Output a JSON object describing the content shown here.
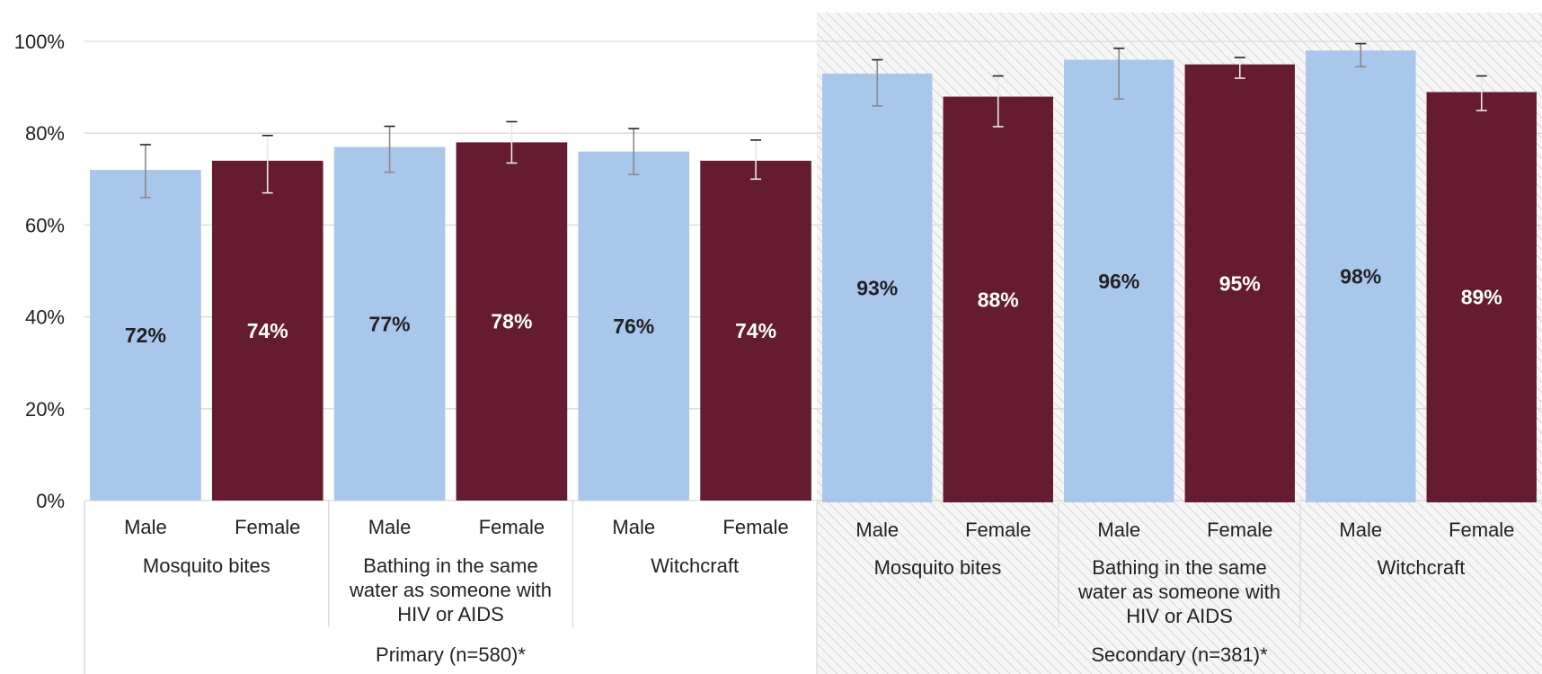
{
  "chart_data": {
    "type": "bar",
    "title": "",
    "xlabel": "",
    "ylabel": "",
    "ylim": [
      0,
      100
    ],
    "y_ticks": [
      "0%",
      "20%",
      "40%",
      "60%",
      "80%",
      "100%"
    ],
    "grid": "horizontal",
    "legend": "none",
    "colors": {
      "Male": "#a9c6eb",
      "Female": "#651c31"
    },
    "groups": [
      {
        "label": "Primary (n=580)*",
        "hatched": false,
        "topics": [
          {
            "label": "Mosquito bites",
            "bars": [
              {
                "category": "Male",
                "value": 72,
                "label": "72%",
                "err_low": 66,
                "err_high": 77.5
              },
              {
                "category": "Female",
                "value": 74,
                "label": "74%",
                "err_low": 67,
                "err_high": 79.5
              }
            ]
          },
          {
            "label": "Bathing in the same water as someone with HIV or AIDS",
            "bars": [
              {
                "category": "Male",
                "value": 77,
                "label": "77%",
                "err_low": 71.5,
                "err_high": 81.5
              },
              {
                "category": "Female",
                "value": 78,
                "label": "78%",
                "err_low": 73.5,
                "err_high": 82.5
              }
            ]
          },
          {
            "label": "Witchcraft",
            "bars": [
              {
                "category": "Male",
                "value": 76,
                "label": "76%",
                "err_low": 71,
                "err_high": 81
              },
              {
                "category": "Female",
                "value": 74,
                "label": "74%",
                "err_low": 70,
                "err_high": 78.5
              }
            ]
          }
        ]
      },
      {
        "label": "Secondary (n=381)*",
        "hatched": true,
        "topics": [
          {
            "label": "Mosquito bites",
            "bars": [
              {
                "category": "Male",
                "value": 93,
                "label": "93%",
                "err_low": 86,
                "err_high": 96
              },
              {
                "category": "Female",
                "value": 88,
                "label": "88%",
                "err_low": 81.5,
                "err_high": 92.5
              }
            ]
          },
          {
            "label": "Bathing in the same water as someone with HIV or AIDS",
            "bars": [
              {
                "category": "Male",
                "value": 96,
                "label": "96%",
                "err_low": 87.5,
                "err_high": 98.5
              },
              {
                "category": "Female",
                "value": 95,
                "label": "95%",
                "err_low": 92,
                "err_high": 96.5
              }
            ]
          },
          {
            "label": "Witchcraft",
            "bars": [
              {
                "category": "Male",
                "value": 98,
                "label": "98%",
                "err_low": 94.5,
                "err_high": 99.5
              },
              {
                "category": "Female",
                "value": 89,
                "label": "89%",
                "err_low": 85,
                "err_high": 92.5
              }
            ]
          }
        ]
      }
    ]
  }
}
